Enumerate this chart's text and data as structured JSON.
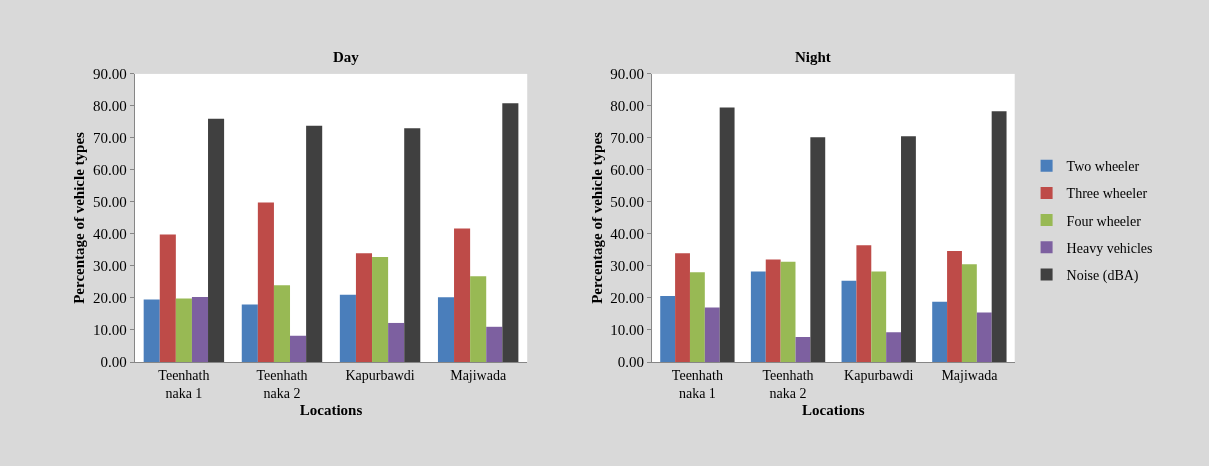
{
  "chart_data": [
    {
      "type": "bar",
      "title": "Day",
      "xlabel": "Locations",
      "ylabel": "Percentage of vehicle types",
      "categories": [
        "Teenhath naka 1",
        "Teenhath naka 2",
        "Kapurbawdi",
        "Majiwada"
      ],
      "series": [
        {
          "color": "#4a7ebb",
          "values": [
            19.5,
            18.0,
            21.0,
            20.2
          ]
        },
        {
          "color": "#be4b48",
          "values": [
            39.8,
            49.8,
            34.0,
            41.7
          ]
        },
        {
          "color": "#98b954",
          "values": [
            19.8,
            24.0,
            32.8,
            26.8
          ]
        },
        {
          "color": "#7d60a0",
          "values": [
            20.3,
            8.2,
            12.2,
            11.0
          ]
        },
        {
          "color": "#404040",
          "values": [
            76.0,
            73.8,
            73.0,
            80.8
          ]
        }
      ],
      "ylim": [
        0,
        90
      ],
      "yticks": [
        {
          "value": 0,
          "label": "0.00"
        },
        {
          "value": 10,
          "label": "10.00"
        },
        {
          "value": 20,
          "label": "20.00"
        },
        {
          "value": 30,
          "label": "30.00"
        },
        {
          "value": 40,
          "label": "40.00"
        },
        {
          "value": 50,
          "label": "50.00"
        },
        {
          "value": 60,
          "label": "60.00"
        },
        {
          "value": 70,
          "label": "70.00"
        },
        {
          "value": 80,
          "label": "80.00"
        },
        {
          "value": 90,
          "label": "90.00"
        }
      ],
      "grid": false
    },
    {
      "type": "bar",
      "title": "Night",
      "xlabel": "Locations",
      "ylabel": "Percentage of vehicle types",
      "categories": [
        "Teenhath naka 1",
        "Teenhath naka 2",
        "Kapurbawdi",
        "Majiwada"
      ],
      "series": [
        {
          "name": "Two wheeler",
          "color": "#4a7ebb",
          "values": [
            20.6,
            28.3,
            25.4,
            18.8
          ]
        },
        {
          "name": "Three wheeler",
          "color": "#be4b48",
          "values": [
            34.0,
            32.0,
            36.5,
            34.7
          ]
        },
        {
          "name": "Four wheeler",
          "color": "#98b954",
          "values": [
            28.0,
            31.3,
            28.3,
            30.5
          ]
        },
        {
          "name": "Heavy vehicles",
          "color": "#7d60a0",
          "values": [
            17.0,
            7.8,
            9.3,
            15.5
          ]
        },
        {
          "name": "Noise (dBA)",
          "color": "#404040",
          "values": [
            79.5,
            70.2,
            70.5,
            78.3
          ]
        }
      ],
      "ylim": [
        0,
        90
      ],
      "yticks": [
        {
          "value": 0,
          "label": "0.00"
        },
        {
          "value": 10,
          "label": "10.00"
        },
        {
          "value": 20,
          "label": "20.00"
        },
        {
          "value": 30,
          "label": "30.00"
        },
        {
          "value": 40,
          "label": "40.00"
        },
        {
          "value": 50,
          "label": "50.00"
        },
        {
          "value": 60,
          "label": "60.00"
        },
        {
          "value": 70,
          "label": "70.00"
        },
        {
          "value": 80,
          "label": "80.00"
        },
        {
          "value": 90,
          "label": "90.00"
        }
      ],
      "grid": false,
      "legend": "right"
    }
  ]
}
